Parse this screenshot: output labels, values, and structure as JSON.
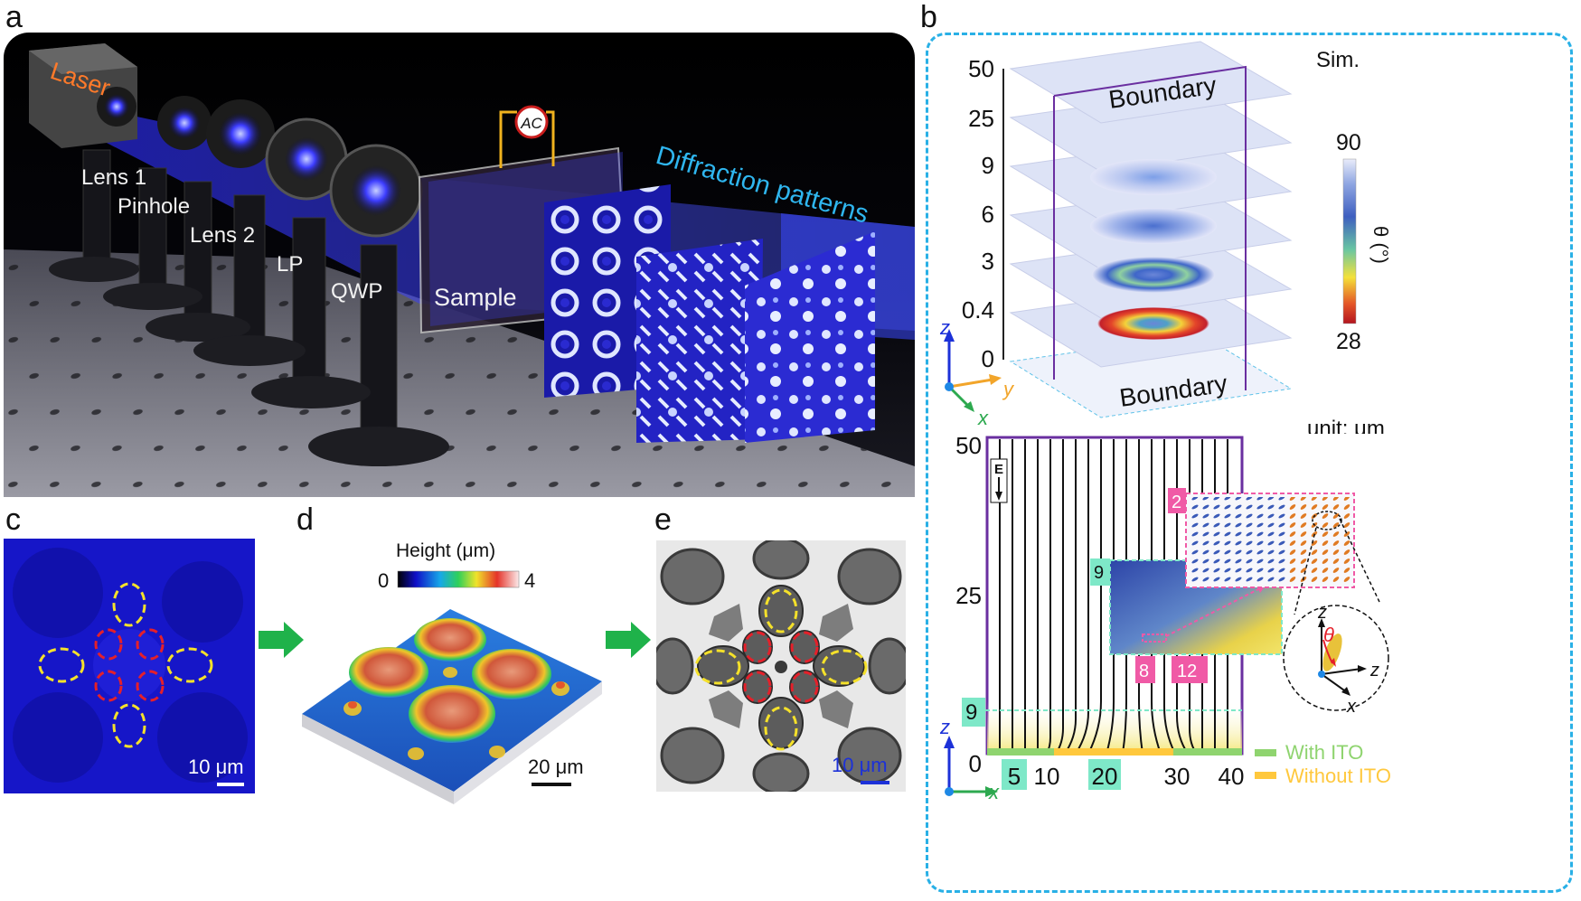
{
  "panels": {
    "a": {
      "letter": "a",
      "labels": {
        "laser": "Laser",
        "lens1": "Lens 1",
        "pinhole": "Pinhole",
        "lens2": "Lens 2",
        "lp": "LP",
        "qwp": "QWP",
        "sample": "Sample",
        "ac": "AC",
        "diffraction": "Diffraction patterns"
      }
    },
    "b": {
      "letter": "b",
      "sim_label": "Sim.",
      "unit_label": "unit: μm",
      "layer_ticks": [
        "50",
        "25",
        "9",
        "6",
        "3",
        "0.4",
        "0"
      ],
      "boundary_top": "Boundary",
      "boundary_bottom": "Boundary",
      "colorbar": {
        "max": "90",
        "min": "28",
        "label": "θ (°)"
      },
      "axes3d": {
        "z": "z",
        "y": "y",
        "x": "x"
      },
      "field": {
        "e_label": "E",
        "y_ticks": [
          "50",
          "25",
          "0"
        ],
        "x_ticks": [
          "5",
          "10",
          "20",
          "30",
          "40"
        ],
        "marker_9": "9",
        "inset_9": "9",
        "marker_2": "2",
        "marker_8": "8",
        "marker_12": "12",
        "axes": {
          "z": "z",
          "x": "x"
        },
        "angle": "θ",
        "legend": [
          {
            "label": "With ITO",
            "color": "#8fd46f"
          },
          {
            "label": "Without ITO",
            "color": "#ffc83d"
          }
        ]
      }
    },
    "c": {
      "letter": "c",
      "scale": "10 μm"
    },
    "d": {
      "letter": "d",
      "colorbar_title": "Height (μm)",
      "colorbar_min": "0",
      "colorbar_max": "4",
      "scale": "20 μm"
    },
    "e": {
      "letter": "e",
      "scale": "10 μm"
    }
  },
  "colors": {
    "dash_border": "#29b0e6",
    "laser_text": "#ff7a2a",
    "diffraction_text": "#2fb6ef",
    "marker_pink": "#f05aa6",
    "marker_mint": "#7ee8c8",
    "frame_purple": "#6a2fa0",
    "yellow_ring": "#f5e12a",
    "red_ring": "#e5202a"
  }
}
